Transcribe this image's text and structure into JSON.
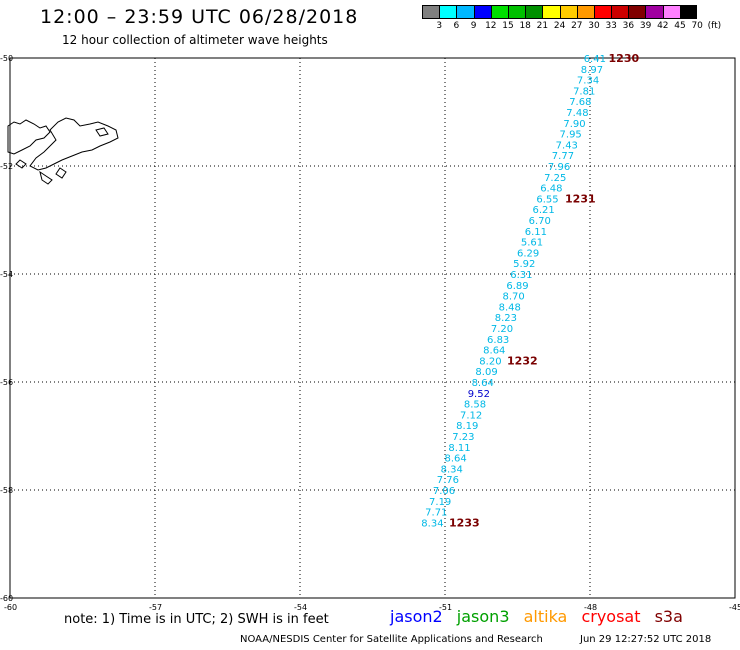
{
  "title": "12:00 – 23:59 UTC 06/28/2018",
  "subtitle": "12 hour collection of altimeter wave heights",
  "colorbar": {
    "unit": "(ft)",
    "ticks": [
      "3",
      "6",
      "9",
      "12",
      "15",
      "18",
      "21",
      "24",
      "27",
      "30",
      "33",
      "36",
      "39",
      "42",
      "45",
      "70"
    ],
    "colors": [
      "#808080",
      "#00ffff",
      "#00b8ff",
      "#0000ff",
      "#00e000",
      "#00c000",
      "#009000",
      "#ffff00",
      "#ffcc00",
      "#ff9900",
      "#ff0000",
      "#cc0000",
      "#800000",
      "#a000a0",
      "#ff80ff",
      "#000000"
    ]
  },
  "axes": {
    "x_ticks": [
      "-60",
      "-57",
      "-54",
      "-51",
      "-48",
      "-45"
    ],
    "y_ticks": [
      "-50",
      "-52",
      "-54",
      "-56",
      "-58",
      "-60"
    ],
    "xlim": [
      -60,
      -45
    ],
    "ylim": [
      -60,
      -50
    ]
  },
  "track": {
    "color": "#00b8e6",
    "highlight_color": "#0000cc",
    "points": [
      {
        "label": "6.41",
        "lon": -47.9,
        "lat": -50.0
      },
      {
        "label": "8.97",
        "lon": -47.96,
        "lat": -50.2
      },
      {
        "label": "7.34",
        "lon": -48.04,
        "lat": -50.4
      },
      {
        "label": "7.81",
        "lon": -48.12,
        "lat": -50.6
      },
      {
        "label": "7.68",
        "lon": -48.2,
        "lat": -50.8
      },
      {
        "label": "7.48",
        "lon": -48.26,
        "lat": -51.0
      },
      {
        "label": "7.90",
        "lon": -48.32,
        "lat": -51.2
      },
      {
        "label": "7.95",
        "lon": -48.4,
        "lat": -51.4
      },
      {
        "label": "7.43",
        "lon": -48.48,
        "lat": -51.6
      },
      {
        "label": "7.77",
        "lon": -48.56,
        "lat": -51.8
      },
      {
        "label": "7.96",
        "lon": -48.64,
        "lat": -52.0
      },
      {
        "label": "7.25",
        "lon": -48.72,
        "lat": -52.2
      },
      {
        "label": "6.48",
        "lon": -48.8,
        "lat": -52.4
      },
      {
        "label": "6.55",
        "lon": -48.88,
        "lat": -52.6
      },
      {
        "label": "6.21",
        "lon": -48.96,
        "lat": -52.8
      },
      {
        "label": "6.70",
        "lon": -49.04,
        "lat": -53.0
      },
      {
        "label": "6.11",
        "lon": -49.12,
        "lat": -53.2
      },
      {
        "label": "5.61",
        "lon": -49.2,
        "lat": -53.4
      },
      {
        "label": "6.29",
        "lon": -49.28,
        "lat": -53.6
      },
      {
        "label": "5.92",
        "lon": -49.36,
        "lat": -53.8
      },
      {
        "label": "6.31",
        "lon": -49.42,
        "lat": -54.0
      },
      {
        "label": "6.89",
        "lon": -49.5,
        "lat": -54.2
      },
      {
        "label": "8.70",
        "lon": -49.58,
        "lat": -54.4
      },
      {
        "label": "8.48",
        "lon": -49.66,
        "lat": -54.6
      },
      {
        "label": "8.23",
        "lon": -49.74,
        "lat": -54.8
      },
      {
        "label": "7.20",
        "lon": -49.82,
        "lat": -55.0
      },
      {
        "label": "6.83",
        "lon": -49.9,
        "lat": -55.2
      },
      {
        "label": "8.64",
        "lon": -49.98,
        "lat": -55.4
      },
      {
        "label": "8.20",
        "lon": -50.06,
        "lat": -55.6
      },
      {
        "label": "8.09",
        "lon": -50.14,
        "lat": -55.8
      },
      {
        "label": "8.64",
        "lon": -50.22,
        "lat": -56.0
      },
      {
        "label": "9.52",
        "lon": -50.3,
        "lat": -56.2,
        "highlight": true
      },
      {
        "label": "8.58",
        "lon": -50.38,
        "lat": -56.4
      },
      {
        "label": "7.12",
        "lon": -50.46,
        "lat": -56.6
      },
      {
        "label": "8.19",
        "lon": -50.54,
        "lat": -56.8
      },
      {
        "label": "7.23",
        "lon": -50.62,
        "lat": -57.0
      },
      {
        "label": "8.11",
        "lon": -50.7,
        "lat": -57.2
      },
      {
        "label": "8.64",
        "lon": -50.78,
        "lat": -57.4
      },
      {
        "label": "8.34",
        "lon": -50.86,
        "lat": -57.6
      },
      {
        "label": "7.76",
        "lon": -50.94,
        "lat": -57.8
      },
      {
        "label": "7.06",
        "lon": -51.02,
        "lat": -58.0
      },
      {
        "label": "7.19",
        "lon": -51.1,
        "lat": -58.2
      },
      {
        "label": "7.71",
        "lon": -51.18,
        "lat": -58.4
      },
      {
        "label": "8.34",
        "lon": -51.26,
        "lat": -58.6
      }
    ],
    "times": [
      {
        "label": "1230",
        "lon": -47.3,
        "lat": -50.0
      },
      {
        "label": "1231",
        "lon": -48.2,
        "lat": -52.6
      },
      {
        "label": "1232",
        "lon": -49.4,
        "lat": -55.6
      },
      {
        "label": "1233",
        "lon": -50.6,
        "lat": -58.6
      }
    ]
  },
  "note": "note: 1) Time is in UTC; 2) SWH is in feet",
  "legend": [
    {
      "name": "jason2",
      "color": "#0000ff"
    },
    {
      "name": "jason3",
      "color": "#00a000"
    },
    {
      "name": "altika",
      "color": "#ff9900"
    },
    {
      "name": "cryosat",
      "color": "#ff0000"
    },
    {
      "name": "s3a",
      "color": "#800000"
    }
  ],
  "credit": "NOAA/NESDIS Center for Satellite Applications and Research",
  "credit_time": "Jun 29 12:27:52 UTC 2018"
}
